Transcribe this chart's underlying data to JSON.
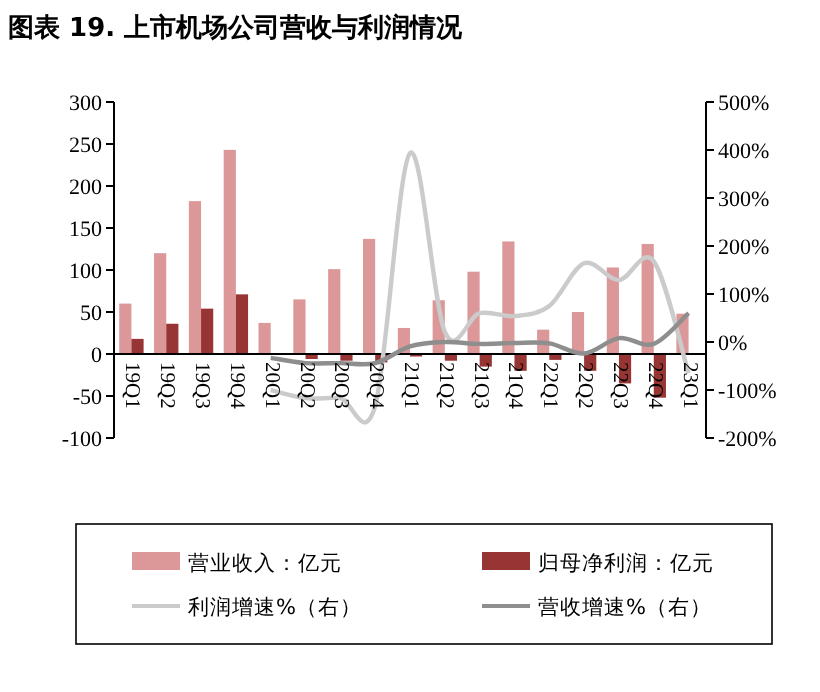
{
  "chart_data": {
    "type": "bar",
    "title": "图表 19. 上市机场公司营收与利润情况",
    "categories": [
      "19Q1",
      "19Q2",
      "19Q3",
      "19Q4",
      "20Q1",
      "20Q2",
      "20Q3",
      "20Q4",
      "21Q1",
      "21Q2",
      "21Q3",
      "21Q4",
      "22Q1",
      "22Q2",
      "22Q3",
      "22Q4",
      "23Q1"
    ],
    "series": [
      {
        "name": "营业收入：亿元",
        "color": "#dc9898",
        "values": [
          60,
          120,
          182,
          243,
          37,
          65,
          101,
          137,
          31,
          64,
          98,
          134,
          29,
          50,
          103,
          131,
          48
        ]
      },
      {
        "name": "归母净利润：亿元",
        "color": "#973434",
        "values": [
          18,
          36,
          54,
          71,
          -1,
          -6,
          -8,
          -10,
          -3,
          -8,
          -15,
          -20,
          -7,
          -20,
          -35,
          -52,
          1
        ]
      },
      {
        "name": "利润增速%（右）",
        "type": "line",
        "axis": "y2",
        "color": "#cbcbcb",
        "values": [
          null,
          null,
          null,
          null,
          -100,
          -117,
          -117,
          -133,
          393,
          21,
          60,
          54,
          75,
          164,
          129,
          168,
          -65
        ]
      },
      {
        "name": "营收增速%（右）",
        "type": "line",
        "axis": "y2",
        "color": "#8e8e8e",
        "values": [
          null,
          null,
          null,
          null,
          -33,
          -44,
          -44,
          -44,
          -9,
          0,
          -4,
          -2,
          -3,
          -24,
          8,
          -4,
          60
        ]
      }
    ],
    "ylim": [
      -100,
      300
    ],
    "yticks": [
      -100,
      -50,
      0,
      50,
      100,
      150,
      200,
      250,
      300
    ],
    "y2lim": [
      -200,
      500
    ],
    "y2ticks": [
      {
        "value": -200,
        "label": "-200%"
      },
      {
        "value": -100,
        "label": "-100%"
      },
      {
        "value": 0,
        "label": "0%"
      },
      {
        "value": 100,
        "label": "100%"
      },
      {
        "value": 200,
        "label": "200%"
      },
      {
        "value": 300,
        "label": "300%"
      },
      {
        "value": 400,
        "label": "400%"
      },
      {
        "value": 500,
        "label": "500%"
      }
    ],
    "grid": false,
    "legend": "bottom"
  }
}
